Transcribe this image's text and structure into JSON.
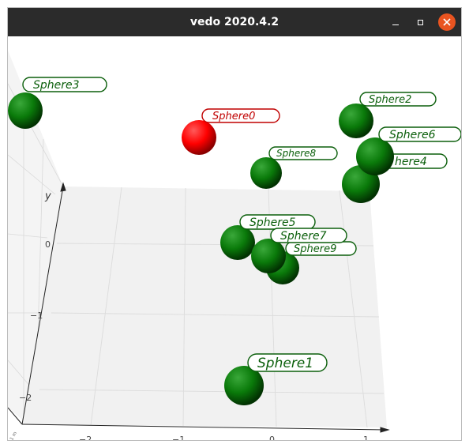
{
  "window": {
    "title": "vedo 2020.4.2",
    "close_color": "#e95420",
    "titlebar_color": "#2b2b2b"
  },
  "scene": {
    "axis_y_title": "y",
    "y_ticks": [
      "0",
      "−1",
      "−2"
    ],
    "x_ticks": [
      "−2",
      "−1",
      "0",
      "1"
    ],
    "corner_label": "1 m",
    "colors": {
      "sphere_green": "#0a7a0a",
      "sphere_red": "#ff0000",
      "label_green": "#0b5f0b",
      "label_red": "#c00000",
      "grid_plane": "#f2f2f2"
    },
    "spheres": [
      {
        "name": "Sphere0",
        "color": "red"
      },
      {
        "name": "Sphere1",
        "color": "green"
      },
      {
        "name": "Sphere2",
        "color": "green"
      },
      {
        "name": "Sphere3",
        "color": "green"
      },
      {
        "name": "here4",
        "color": "green"
      },
      {
        "name": "Sphere5",
        "color": "green"
      },
      {
        "name": "Sphere6",
        "color": "green"
      },
      {
        "name": "Sphere7",
        "color": "green"
      },
      {
        "name": "Sphere8",
        "color": "green"
      },
      {
        "name": "Sphere9",
        "color": "green"
      }
    ]
  }
}
